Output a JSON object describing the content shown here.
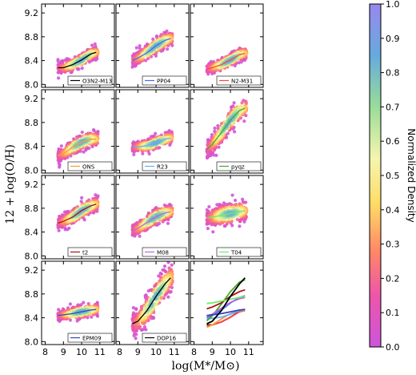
{
  "chart_data": {
    "type": "scatter",
    "xlabel": "log(M*/M⊙)",
    "ylabel": "12 + log(O/H)",
    "xlim": [
      7.8,
      11.8
    ],
    "ylim": [
      7.95,
      9.35
    ],
    "xticks": [
      "8",
      "9",
      "10",
      "11"
    ],
    "yticks": [
      "8.0",
      "8.4",
      "8.8",
      "9.2"
    ],
    "colorbar": {
      "label": "Normalized Density",
      "range": [
        0.0,
        1.0
      ],
      "ticks": [
        "0.0",
        "0.1",
        "0.2",
        "0.3",
        "0.4",
        "0.5",
        "0.6",
        "0.7",
        "0.8",
        "0.9",
        "1.0"
      ]
    },
    "panels": [
      {
        "label": "O3N2-M13",
        "color": "#000000",
        "cloud": {
          "slope": 0.12,
          "spread": 0.05
        },
        "curve": {
          "x": [
            8.7,
            9.0,
            9.5,
            10.0,
            10.5,
            10.8
          ],
          "y": [
            8.28,
            8.28,
            8.33,
            8.41,
            8.51,
            8.54
          ]
        }
      },
      {
        "label": "PP04",
        "color": "#4466ff",
        "cloud": {
          "slope": 0.15,
          "spread": 0.06
        },
        "curve": {
          "x": [
            8.7,
            9.0,
            9.5,
            10.0,
            10.5,
            10.8
          ],
          "y": [
            8.4,
            8.44,
            8.53,
            8.65,
            8.74,
            8.77
          ]
        }
      },
      {
        "label": "N2-M31",
        "color": "#ff4444",
        "cloud": {
          "slope": 0.12,
          "spread": 0.05
        },
        "curve": {
          "x": [
            8.7,
            9.0,
            9.5,
            10.0,
            10.5,
            10.8
          ],
          "y": [
            8.26,
            8.28,
            8.33,
            8.41,
            8.5,
            8.52
          ]
        }
      },
      {
        "label": "ONS",
        "color": "#ff9933",
        "cloud": {
          "slope": 0.15,
          "spread": 0.06
        },
        "curve": {
          "x": [
            8.7,
            9.0,
            9.5,
            10.0,
            10.5,
            10.8
          ],
          "y": [
            8.24,
            8.28,
            8.38,
            8.47,
            8.52,
            8.52
          ]
        }
      },
      {
        "label": "R23",
        "color": "#66aaff",
        "cloud": {
          "slope": 0.05,
          "spread": 0.05
        },
        "curve": {
          "x": [
            8.7,
            9.0,
            9.5,
            10.0,
            10.5,
            10.8
          ],
          "y": [
            8.38,
            8.39,
            8.41,
            8.46,
            8.52,
            8.54
          ]
        }
      },
      {
        "label": "pyqz",
        "color": "#44aa22",
        "cloud": {
          "slope": 0.3,
          "spread": 0.08
        },
        "curve": {
          "x": [
            8.7,
            9.0,
            9.5,
            10.0,
            10.5,
            10.8
          ],
          "y": [
            8.35,
            8.43,
            8.63,
            8.84,
            9.0,
            9.04
          ]
        }
      },
      {
        "label": "t2",
        "color": "#aa1111",
        "cloud": {
          "slope": 0.12,
          "spread": 0.06
        },
        "curve": {
          "x": [
            8.7,
            9.0,
            9.5,
            10.0,
            10.5,
            10.8
          ],
          "y": [
            8.55,
            8.58,
            8.65,
            8.76,
            8.84,
            8.87
          ]
        }
      },
      {
        "label": "M08",
        "color": "#bb66dd",
        "cloud": {
          "slope": 0.12,
          "spread": 0.06
        },
        "curve": {
          "x": [
            8.7,
            9.0,
            9.5,
            10.0,
            10.5,
            10.8
          ],
          "y": [
            8.42,
            8.46,
            8.56,
            8.66,
            8.72,
            8.74
          ]
        }
      },
      {
        "label": "T04",
        "color": "#66ee66",
        "cloud": {
          "slope": 0.05,
          "spread": 0.08
        },
        "curve": {
          "x": [
            8.7,
            9.0,
            9.5,
            10.0,
            10.5,
            10.8
          ],
          "y": [
            8.64,
            8.65,
            8.68,
            8.71,
            8.74,
            8.76
          ]
        }
      },
      {
        "label": "EPM09",
        "color": "#3344bb",
        "cloud": {
          "slope": 0.04,
          "spread": 0.05
        },
        "curve": {
          "x": [
            8.7,
            9.0,
            9.5,
            10.0,
            10.5,
            10.8
          ],
          "y": [
            8.44,
            8.45,
            8.47,
            8.5,
            8.53,
            8.54
          ]
        }
      },
      {
        "label": "DOP16",
        "color": "#000000",
        "cloud": {
          "slope": 0.6,
          "spread": 0.11
        },
        "curve": {
          "x": [
            8.7,
            9.0,
            9.5,
            10.0,
            10.5,
            10.8
          ],
          "y": [
            8.3,
            8.34,
            8.52,
            8.76,
            8.97,
            9.07
          ]
        }
      }
    ]
  }
}
